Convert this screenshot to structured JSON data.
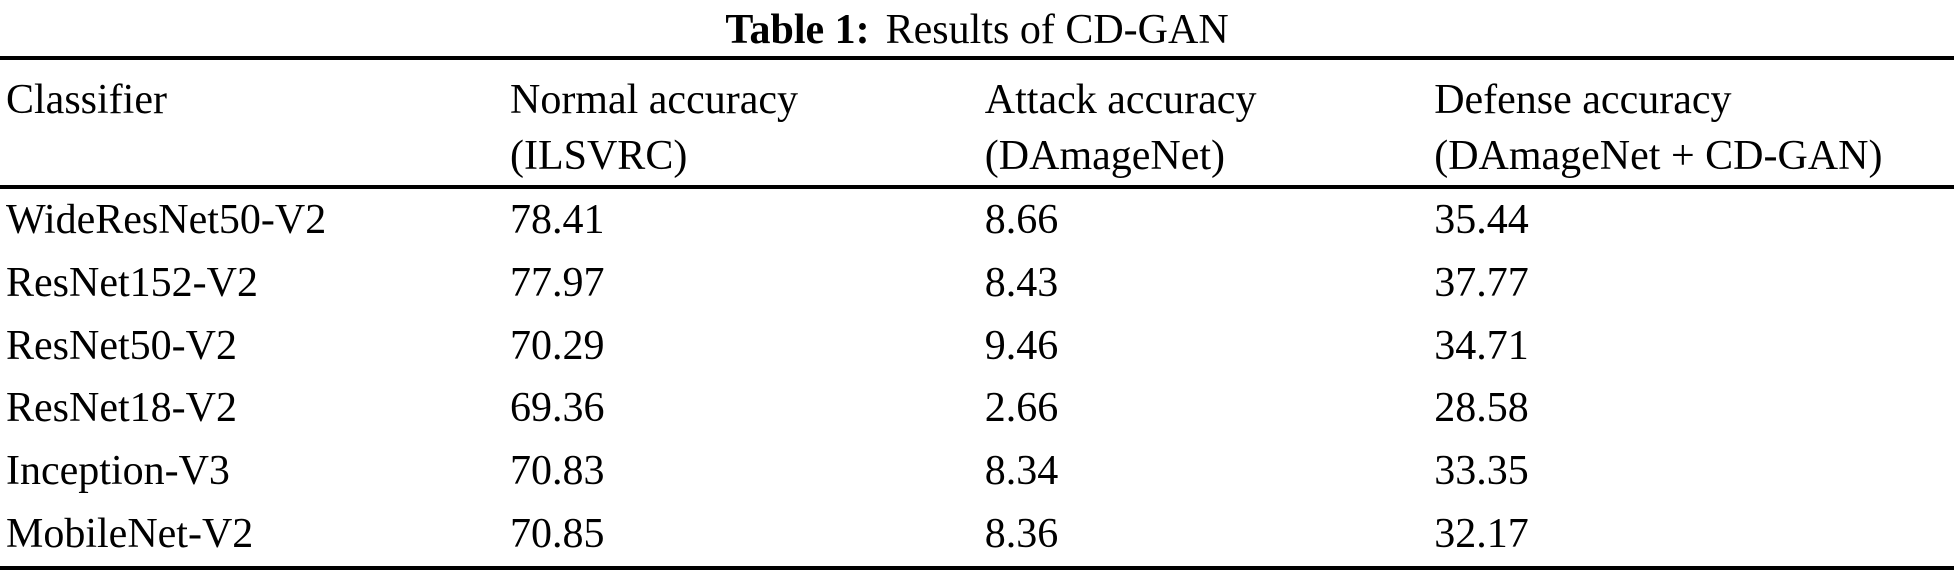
{
  "caption": {
    "label": "Table 1:",
    "text": "Results of CD-GAN"
  },
  "table": {
    "columns": [
      {
        "line1": "Classifier",
        "line2": ""
      },
      {
        "line1": "Normal accuracy",
        "line2": "(ILSVRC)"
      },
      {
        "line1": "Attack accuracy",
        "line2": "(DAmageNet)"
      },
      {
        "line1": "Defense accuracy",
        "line2": "(DAmageNet + CD-GAN)"
      }
    ],
    "rows": [
      [
        "WideResNet50-V2",
        "78.41",
        "8.66",
        "35.44"
      ],
      [
        "ResNet152-V2",
        "77.97",
        "8.43",
        "37.77"
      ],
      [
        "ResNet50-V2",
        "70.29",
        "9.46",
        "34.71"
      ],
      [
        "ResNet18-V2",
        "69.36",
        "2.66",
        "28.58"
      ],
      [
        "Inception-V3",
        "70.83",
        "8.34",
        "33.35"
      ],
      [
        "MobileNet-V2",
        "70.85",
        "8.36",
        "32.17"
      ]
    ]
  },
  "colors": {
    "text": "#000000",
    "background": "#ffffff",
    "rule": "#000000"
  },
  "chart_data": {
    "type": "table",
    "title": "Table 1: Results of CD-GAN",
    "columns": [
      "Classifier",
      "Normal accuracy (ILSVRC)",
      "Attack accuracy (DAmageNet)",
      "Defense accuracy (DAmageNet + CD-GAN)"
    ],
    "rows": [
      {
        "classifier": "WideResNet50-V2",
        "normal_accuracy_ilsvrc": 78.41,
        "attack_accuracy_damagenet": 8.66,
        "defense_accuracy_damagenet_cdgan": 35.44
      },
      {
        "classifier": "ResNet152-V2",
        "normal_accuracy_ilsvrc": 77.97,
        "attack_accuracy_damagenet": 8.43,
        "defense_accuracy_damagenet_cdgan": 37.77
      },
      {
        "classifier": "ResNet50-V2",
        "normal_accuracy_ilsvrc": 70.29,
        "attack_accuracy_damagenet": 9.46,
        "defense_accuracy_damagenet_cdgan": 34.71
      },
      {
        "classifier": "ResNet18-V2",
        "normal_accuracy_ilsvrc": 69.36,
        "attack_accuracy_damagenet": 2.66,
        "defense_accuracy_damagenet_cdgan": 28.58
      },
      {
        "classifier": "Inception-V3",
        "normal_accuracy_ilsvrc": 70.83,
        "attack_accuracy_damagenet": 8.34,
        "defense_accuracy_damagenet_cdgan": 33.35
      },
      {
        "classifier": "MobileNet-V2",
        "normal_accuracy_ilsvrc": 70.85,
        "attack_accuracy_damagenet": 8.36,
        "defense_accuracy_damagenet_cdgan": 32.17
      }
    ]
  }
}
